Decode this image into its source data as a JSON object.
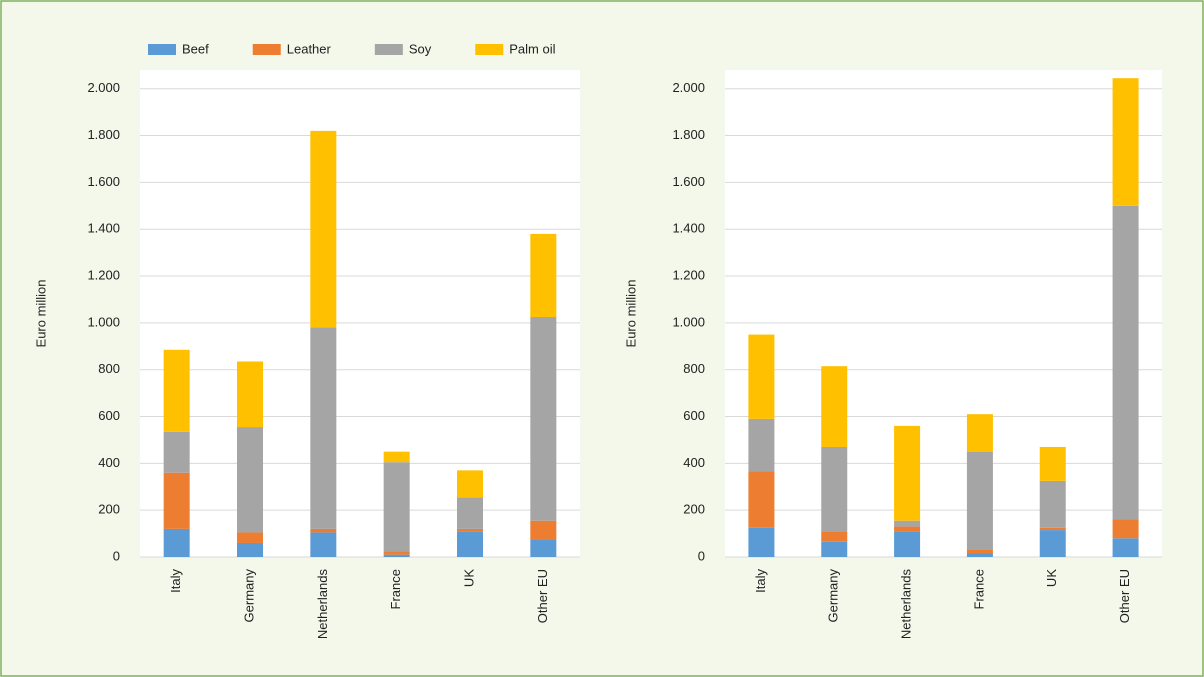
{
  "chart_data": [
    {
      "type": "stacked-bar",
      "y_label": "Euro million",
      "categories": [
        "Italy",
        "Germany",
        "Netherlands",
        "France",
        "UK",
        "Other EU"
      ],
      "series": [
        {
          "name": "Beef",
          "color": "#5b9bd5",
          "values": [
            120,
            60,
            105,
            10,
            110,
            75
          ]
        },
        {
          "name": "Leather",
          "color": "#ed7d31",
          "values": [
            240,
            45,
            15,
            15,
            10,
            80
          ]
        },
        {
          "name": "Soy",
          "color": "#a5a5a5",
          "values": [
            175,
            450,
            860,
            380,
            135,
            870
          ]
        },
        {
          "name": "Palm oil",
          "color": "#ffc000",
          "values": [
            350,
            280,
            840,
            45,
            115,
            355
          ]
        }
      ],
      "ylim": [
        0,
        2080
      ],
      "yticks": [
        0,
        200,
        400,
        600,
        800,
        {
          "value": 1000,
          "label": "1.000"
        },
        {
          "value": 1200,
          "label": "1.200"
        },
        {
          "value": 1400,
          "label": "1.400"
        },
        {
          "value": 1600,
          "label": "1.600"
        },
        {
          "value": 1800,
          "label": "1.800"
        },
        {
          "value": 2000,
          "label": "2.000"
        }
      ],
      "grid": true,
      "legend": "top"
    },
    {
      "type": "stacked-bar",
      "y_label": "Euro million",
      "categories": [
        "Italy",
        "Germany",
        "Netherlands",
        "France",
        "UK",
        "Other EU"
      ],
      "series": [
        {
          "color": "#5b9bd5",
          "values": [
            125,
            65,
            110,
            15,
            115,
            80
          ]
        },
        {
          "color": "#ed7d31",
          "values": [
            240,
            45,
            20,
            15,
            10,
            80
          ]
        },
        {
          "color": "#a5a5a5",
          "values": [
            225,
            360,
            25,
            420,
            200,
            1340
          ]
        },
        {
          "color": "#ffc000",
          "values": [
            360,
            345,
            405,
            160,
            145,
            545
          ]
        }
      ],
      "ylim": [
        0,
        2080
      ],
      "yticks": [
        0,
        200,
        400,
        600,
        800,
        {
          "value": 1000,
          "label": "1.000"
        },
        {
          "value": 1200,
          "label": "1.200"
        },
        {
          "value": 1400,
          "label": "1.400"
        },
        {
          "value": 1600,
          "label": "1.600"
        },
        {
          "value": 1800,
          "label": "1.800"
        },
        {
          "value": 2000,
          "label": "2.000"
        }
      ],
      "grid": true
    }
  ]
}
